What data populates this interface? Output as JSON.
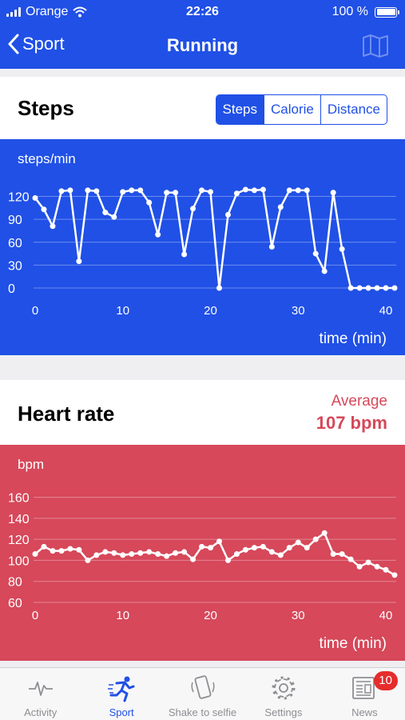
{
  "status_bar": {
    "carrier": "Orange",
    "time": "22:26",
    "battery": "100 %"
  },
  "nav": {
    "back_label": "Sport",
    "title": "Running",
    "map_icon": "map-icon"
  },
  "steps_card": {
    "title": "Steps",
    "segments": [
      "Steps",
      "Calorie",
      "Distance"
    ],
    "selected_segment": "Steps"
  },
  "heart_card": {
    "title": "Heart rate",
    "average_label": "Average",
    "average_value": "107 bpm"
  },
  "colors": {
    "primary": "#2050e6",
    "heart": "#d6485a",
    "badge": "#e62c2c",
    "tab_inactive": "#8e8e93"
  },
  "chart_data": [
    {
      "type": "line",
      "ylabel": "steps/min",
      "xlabel": "time (min)",
      "xlim": [
        0,
        41
      ],
      "ylim": [
        0,
        130
      ],
      "yticks": [
        0,
        30,
        60,
        90,
        120
      ],
      "xticks": [
        0,
        10,
        20,
        30,
        40
      ],
      "grid": true,
      "x": [
        0,
        1,
        2,
        3,
        4,
        5,
        6,
        7,
        8,
        9,
        10,
        11,
        12,
        13,
        14,
        15,
        16,
        17,
        18,
        19,
        20,
        21,
        22,
        23,
        24,
        25,
        26,
        27,
        28,
        29,
        30,
        31,
        32,
        33,
        34,
        35,
        36,
        37,
        38,
        39,
        40,
        41
      ],
      "values": [
        118,
        103,
        81,
        127,
        128,
        35,
        128,
        127,
        99,
        93,
        126,
        128,
        128,
        112,
        70,
        125,
        125,
        44,
        104,
        128,
        126,
        0,
        96,
        124,
        129,
        128,
        129,
        54,
        106,
        128,
        128,
        128,
        45,
        22,
        125,
        51,
        0,
        0,
        0,
        0,
        0,
        0
      ]
    },
    {
      "type": "line",
      "ylabel": "bpm",
      "xlabel": "time (min)",
      "xlim": [
        0,
        41
      ],
      "ylim": [
        60,
        165
      ],
      "yticks": [
        60,
        80,
        100,
        120,
        140,
        160
      ],
      "xticks": [
        0,
        10,
        20,
        30,
        40
      ],
      "grid": true,
      "x": [
        0,
        1,
        2,
        3,
        4,
        5,
        6,
        7,
        8,
        9,
        10,
        11,
        12,
        13,
        14,
        15,
        16,
        17,
        18,
        19,
        20,
        21,
        22,
        23,
        24,
        25,
        26,
        27,
        28,
        29,
        30,
        31,
        32,
        33,
        34,
        35,
        36,
        37,
        38,
        39,
        40,
        41
      ],
      "values": [
        106,
        113,
        109,
        109,
        111,
        110,
        100,
        105,
        108,
        107,
        105,
        106,
        107,
        108,
        106,
        104,
        107,
        108,
        101,
        113,
        112,
        118,
        100,
        106,
        110,
        112,
        113,
        108,
        105,
        112,
        117,
        112,
        120,
        126,
        106,
        106,
        101,
        94,
        98,
        94,
        91,
        86
      ]
    }
  ],
  "tabs": [
    {
      "label": "Activity",
      "icon": "activity-icon"
    },
    {
      "label": "Sport",
      "icon": "runner-icon",
      "active": true
    },
    {
      "label": "Shake to selfie",
      "icon": "phone-shake-icon"
    },
    {
      "label": "Settings",
      "icon": "gear-icon"
    },
    {
      "label": "News",
      "icon": "newspaper-icon",
      "badge": "10"
    }
  ]
}
